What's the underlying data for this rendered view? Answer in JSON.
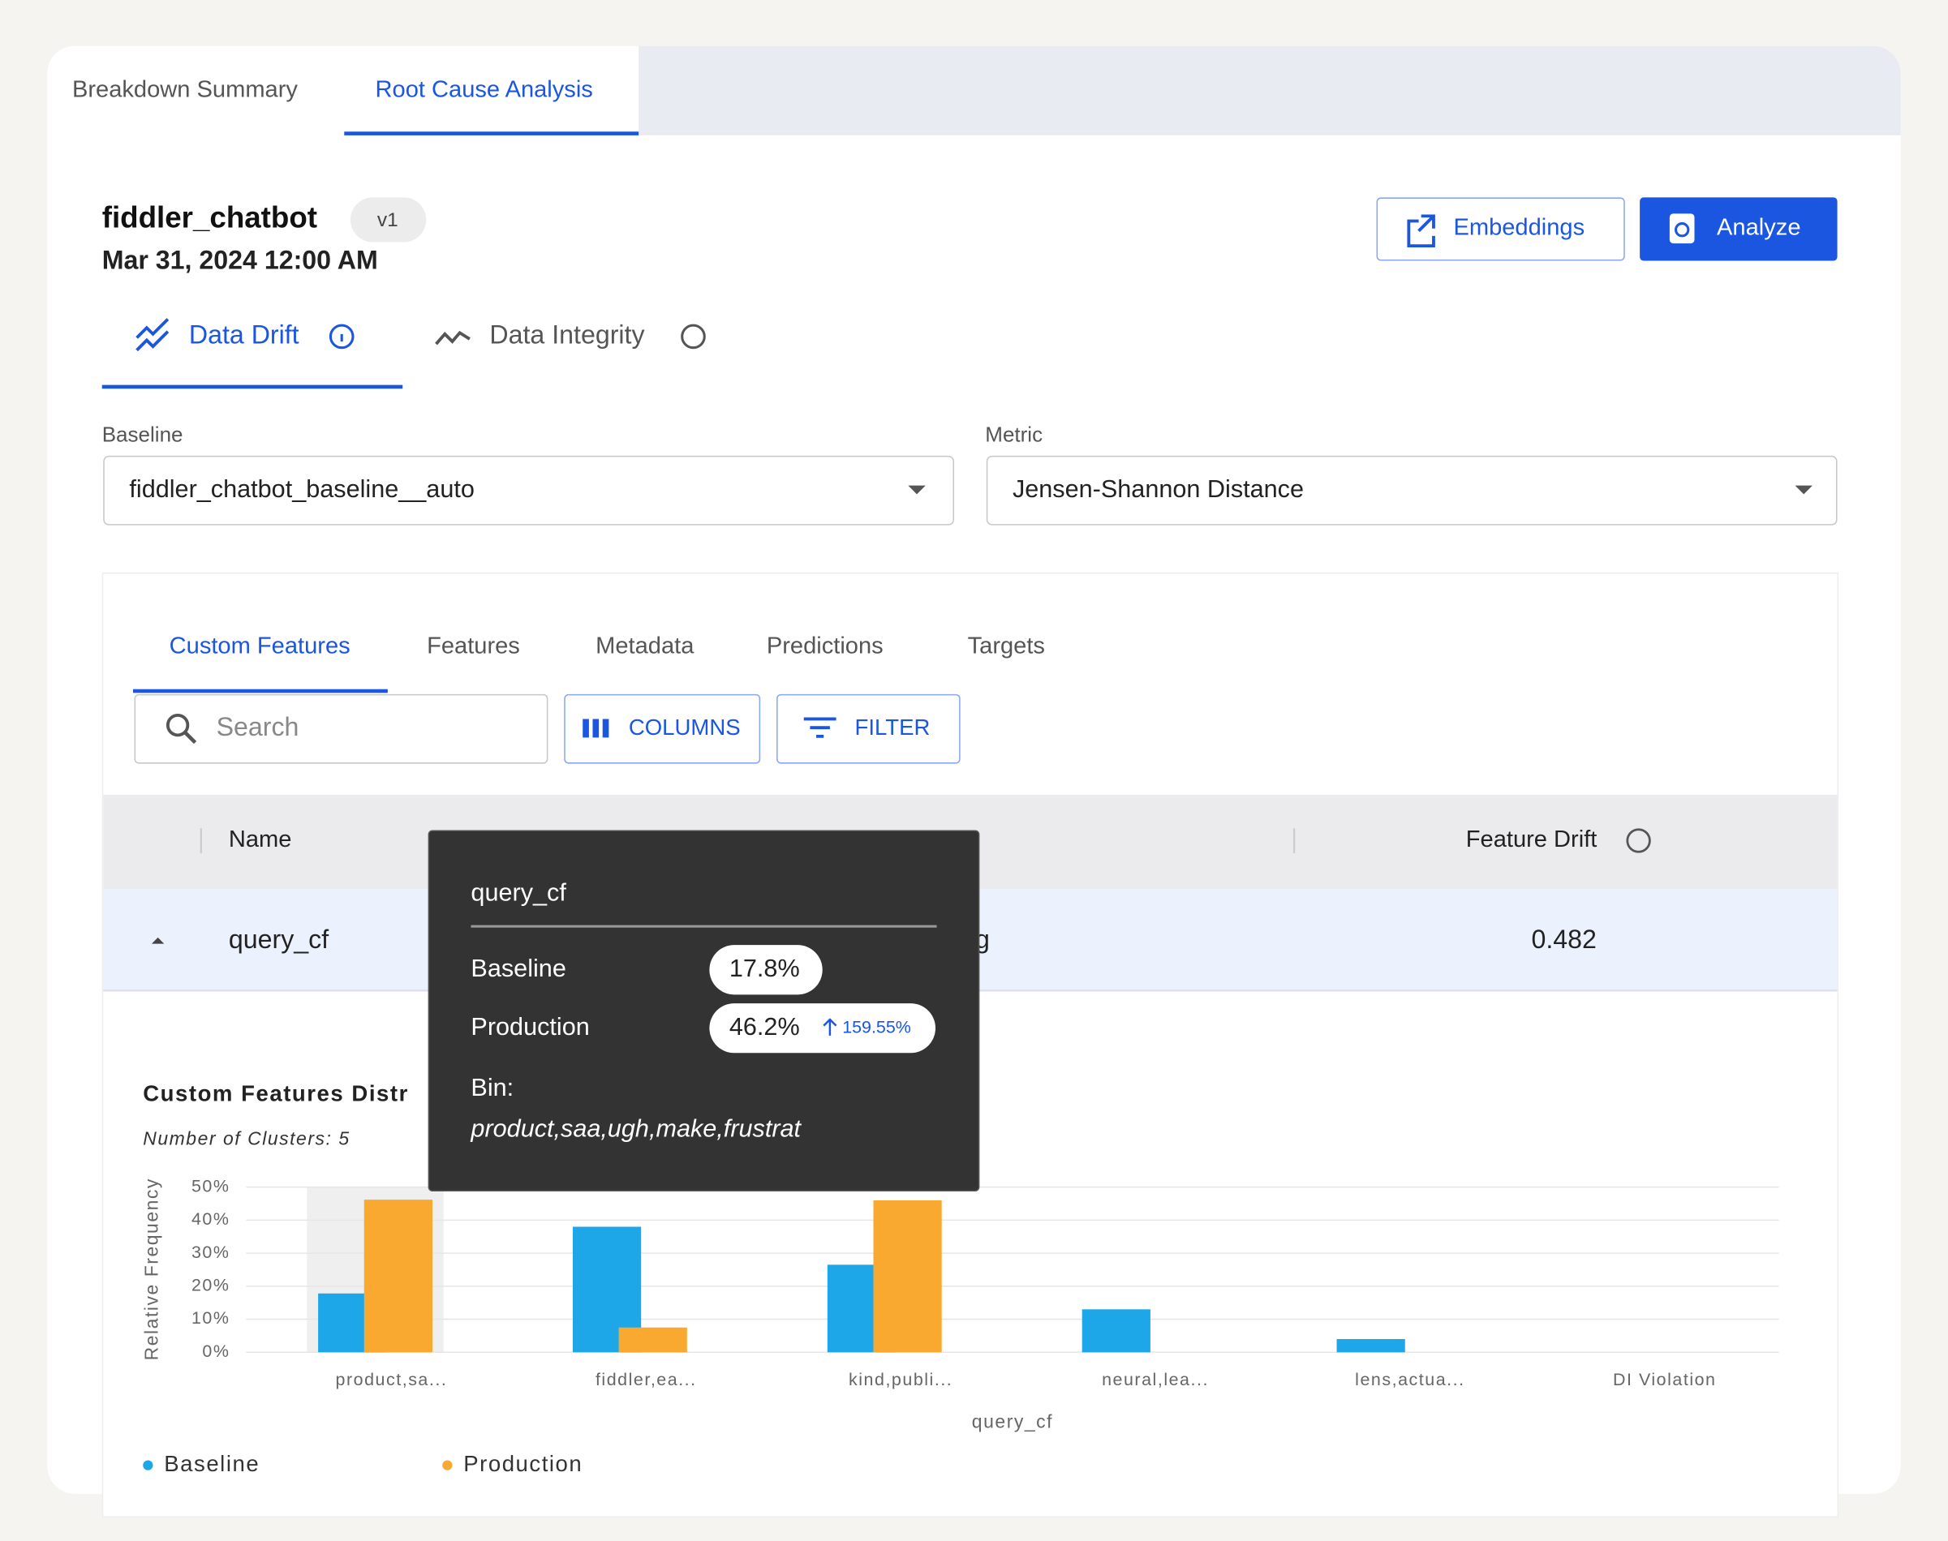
{
  "tabs": [
    "Breakdown Summary",
    "Root Cause Analysis"
  ],
  "header": {
    "model": "fiddler_chatbot",
    "version": "v1",
    "date": "Mar 31, 2024 12:00 AM",
    "buttons": [
      "Embeddings",
      "Analyze"
    ]
  },
  "subtabs": [
    "Data Drift",
    "Data Integrity"
  ],
  "selectors": [
    {
      "label": "Baseline",
      "value": "fiddler_chatbot_baseline__auto"
    },
    {
      "label": "Metric",
      "value": "Jensen-Shannon Distance"
    }
  ],
  "feature_tabs": [
    "Custom Features",
    "Features",
    "Metadata",
    "Predictions",
    "Targets"
  ],
  "toolbar": {
    "search": "Search",
    "columns": "COLUMNS",
    "filter": "FILTER"
  },
  "table": {
    "headers": [
      "Name",
      "Feature Drift"
    ],
    "row": {
      "name": "query_cf",
      "middle": "g",
      "drift": "0.482"
    }
  },
  "chart_data": {
    "type": "bar",
    "title": "Custom Features Distr",
    "subtitle": "Number of Clusters: 5",
    "y_label": "Relative Frequency",
    "x_label": "query_cf",
    "categories": [
      "product,sa...",
      "fiddler,ea...",
      "kind,publi...",
      "neural,lea...",
      "lens,actua...",
      "DI Violation"
    ],
    "series": [
      {
        "name": "Baseline",
        "color": "#1ea7e8",
        "values": [
          17.8,
          38,
          26.5,
          13,
          4,
          0
        ]
      },
      {
        "name": "Production",
        "color": "#f9a830",
        "values": [
          46.2,
          7.5,
          46,
          0,
          0,
          0
        ]
      }
    ],
    "ylim": [
      0,
      50
    ],
    "yticks": [
      {
        "value": 0,
        "label": "0%"
      },
      {
        "value": 10,
        "label": "10%"
      },
      {
        "value": 20,
        "label": "20%"
      },
      {
        "value": 30,
        "label": "30%"
      },
      {
        "value": 40,
        "label": "40%"
      },
      {
        "value": 50,
        "label": "50%"
      }
    ],
    "grid": true
  },
  "tooltip": {
    "title": "query_cf",
    "rows": [
      {
        "label": "Baseline",
        "value": "17.8%"
      },
      {
        "label": "Production",
        "value": "46.2%",
        "change": "159.55%"
      }
    ],
    "bin_label": "Bin:",
    "bin": "product,saa,ugh,make,frustrat"
  }
}
